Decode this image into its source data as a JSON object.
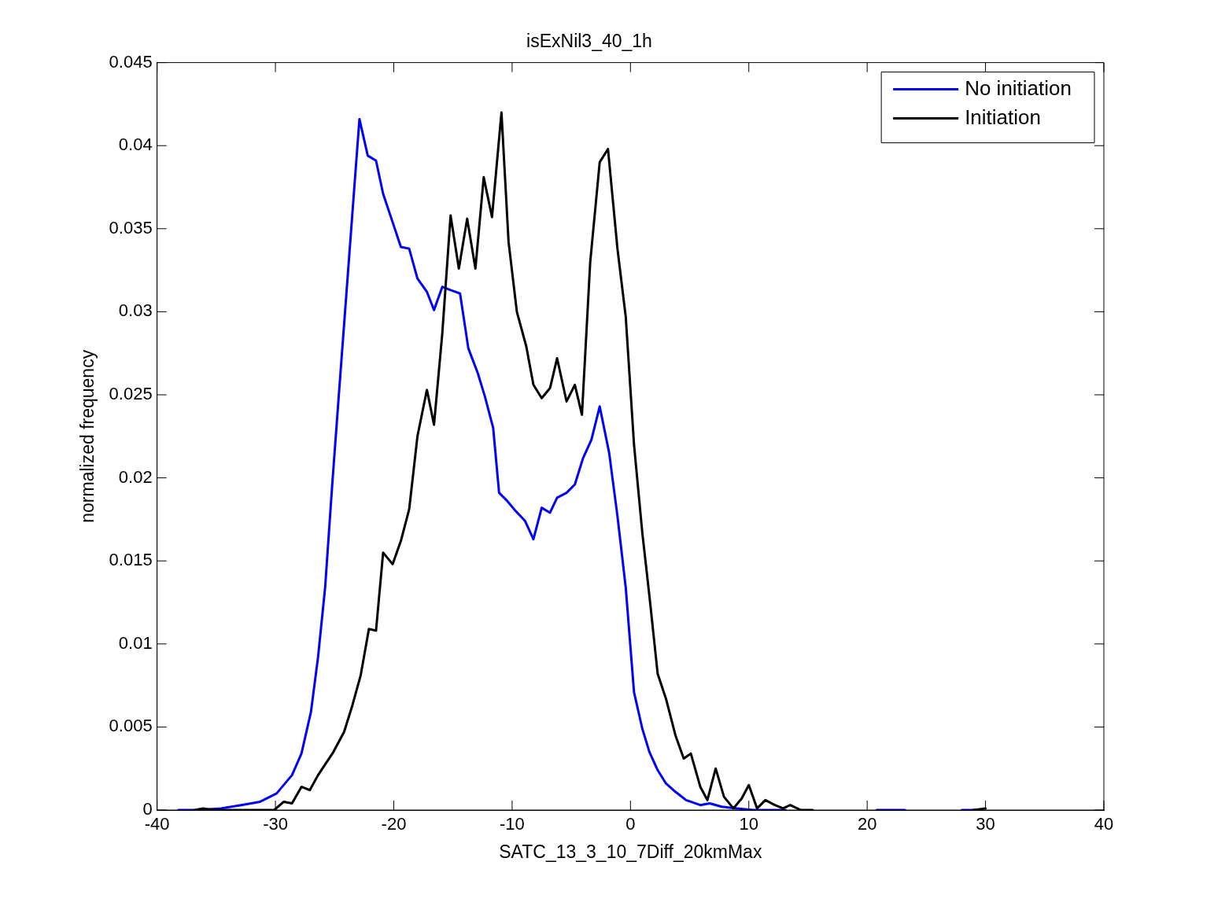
{
  "chart_data": {
    "type": "line",
    "title": "isExNil3_40_1h",
    "xlabel": "SATC_13_3_10_7Diff_20kmMax",
    "ylabel": "normalized frequency",
    "xlim": [
      -40,
      40
    ],
    "xticks": [
      -40,
      -30,
      -20,
      -10,
      0,
      10,
      20,
      30,
      40
    ],
    "ylim": [
      0,
      0.045
    ],
    "yticks": [
      0,
      0.005,
      0.01,
      0.015,
      0.02,
      0.025,
      0.03,
      0.035,
      0.04,
      0.045
    ],
    "grid": false,
    "legend": "top right",
    "marker": "none",
    "line_style": "solid",
    "series": [
      {
        "name": "No initiation",
        "color": "#0000ff",
        "x": [
          -38.2,
          -36.6,
          -34.6,
          -32.9,
          -31.3,
          -29.9,
          -28.6,
          -27.8,
          -27.0,
          -26.4,
          -25.8,
          -25.2,
          -24.6,
          -23.5,
          -22.9,
          -22.2,
          -21.5,
          -20.9,
          -20.1,
          -19.4,
          -18.7,
          -18.0,
          -17.2,
          -16.6,
          -15.9,
          -15.2,
          -14.4,
          -13.7,
          -12.9,
          -12.3,
          -11.6,
          -11.1,
          -10.4,
          -9.7,
          -8.9,
          -8.2,
          -7.5,
          -6.8,
          -6.2,
          -5.4,
          -4.7,
          -4.0,
          -3.3,
          -2.6,
          -1.8,
          -1.1,
          -0.4,
          0.3,
          1.0,
          1.6,
          2.3,
          3.0,
          3.8,
          4.7,
          5.9,
          6.7,
          7.7,
          9.0,
          10.4,
          13.1,
          17,
          20.8,
          23.2,
          26,
          28.0,
          29.2
        ],
        "values": [
          0,
          0,
          0.0001,
          0.0003,
          0.0005,
          0.001,
          0.0021,
          0.0034,
          0.0059,
          0.0092,
          0.0134,
          0.0196,
          0.0254,
          0.0359,
          0.0416,
          0.0394,
          0.0391,
          0.0371,
          0.0354,
          0.0339,
          0.0338,
          0.032,
          0.0312,
          0.0301,
          0.0315,
          0.0313,
          0.0311,
          0.0278,
          0.0263,
          0.0249,
          0.023,
          0.0191,
          0.0186,
          0.018,
          0.0174,
          0.0163,
          0.0182,
          0.0179,
          0.0188,
          0.0191,
          0.0196,
          0.0212,
          0.0223,
          0.0243,
          0.0215,
          0.0177,
          0.0134,
          0.0071,
          0.0049,
          0.0035,
          0.0024,
          0.0016,
          0.0011,
          0.0006,
          0.0003,
          0.0004,
          0.0002,
          0.0001,
          0,
          0,
          null,
          0,
          0,
          null,
          0,
          0
        ]
      },
      {
        "name": "Initiation",
        "color": "#000000",
        "x": [
          -36.8,
          -36.1,
          -35.3,
          -30.9,
          -30.1,
          -29.3,
          -28.6,
          -27.8,
          -27.1,
          -26.4,
          -25.1,
          -24.2,
          -23.5,
          -22.8,
          -22.1,
          -21.5,
          -20.9,
          -20.1,
          -19.4,
          -18.7,
          -18.0,
          -17.2,
          -16.6,
          -15.9,
          -15.2,
          -14.5,
          -13.8,
          -13.1,
          -12.4,
          -11.7,
          -10.9,
          -10.3,
          -9.6,
          -8.8,
          -8.2,
          -7.5,
          -6.8,
          -6.2,
          -5.4,
          -4.7,
          -4.1,
          -3.4,
          -2.6,
          -1.9,
          -1.1,
          -0.4,
          0.3,
          1.0,
          1.6,
          2.3,
          3.0,
          3.8,
          4.5,
          5.1,
          5.9,
          6.5,
          7.2,
          7.9,
          8.7,
          9.4,
          10.0,
          10.7,
          11.4,
          12.2,
          12.9,
          13.5,
          14.4,
          15.4,
          22,
          29.0,
          30.0
        ],
        "values": [
          0,
          0.0001,
          0,
          0,
          0,
          0.0005,
          0.0004,
          0.0014,
          0.0012,
          0.0021,
          0.0035,
          0.0047,
          0.0063,
          0.0081,
          0.0109,
          0.0108,
          0.0155,
          0.0148,
          0.0162,
          0.0181,
          0.0225,
          0.0253,
          0.0232,
          0.0287,
          0.0358,
          0.0326,
          0.0356,
          0.0326,
          0.0381,
          0.0357,
          0.042,
          0.0342,
          0.03,
          0.0279,
          0.0256,
          0.0248,
          0.0254,
          0.0272,
          0.0246,
          0.0256,
          0.0238,
          0.033,
          0.039,
          0.0398,
          0.0338,
          0.0297,
          0.022,
          0.0167,
          0.0129,
          0.0082,
          0.0067,
          0.0045,
          0.0031,
          0.0034,
          0.0014,
          0.0006,
          0.0025,
          0.0008,
          0.0001,
          0.0007,
          0.0015,
          0.0001,
          0.0006,
          0.0003,
          0.0001,
          0.0003,
          0,
          0,
          null,
          0,
          0.0001
        ]
      }
    ]
  }
}
